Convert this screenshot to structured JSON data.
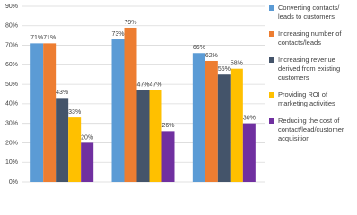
{
  "chart_data": {
    "type": "bar",
    "categories": [
      null,
      null,
      null
    ],
    "series": [
      {
        "name": "Converting contacts/ leads to customers",
        "color": "#5b9bd5",
        "values": [
          71,
          73,
          66
        ],
        "value_labels": [
          "71%",
          "73%",
          "66%"
        ]
      },
      {
        "name": "Increasing number of contacts/leads",
        "color": "#ed7d31",
        "values": [
          71,
          79,
          62
        ],
        "value_labels": [
          "71%",
          "79%",
          "62%"
        ]
      },
      {
        "name": "Increasing revenue derived from existing customers",
        "color": "#44546a",
        "values": [
          43,
          47,
          55
        ],
        "value_labels": [
          "43%",
          "47%",
          "55%"
        ]
      },
      {
        "name": "Providing ROI of marketing activities",
        "color": "#ffc000",
        "values": [
          33,
          47,
          58
        ],
        "value_labels": [
          "33%",
          "47%",
          "58%"
        ]
      },
      {
        "name": "Reducing the cost of contact/lead/customer acquisition",
        "color": "#7030a0",
        "values": [
          20,
          26,
          30
        ],
        "value_labels": [
          "20%",
          "26%",
          "30%"
        ]
      }
    ],
    "ylim": [
      0,
      90
    ],
    "yticks": [
      {
        "value": 0,
        "label": "0%"
      },
      {
        "value": 10,
        "label": "10%"
      },
      {
        "value": 20,
        "label": "20%"
      },
      {
        "value": 30,
        "label": "30%"
      },
      {
        "value": 40,
        "label": "40%"
      },
      {
        "value": 50,
        "label": "50%"
      },
      {
        "value": 60,
        "label": "60%"
      },
      {
        "value": 70,
        "label": "70%"
      },
      {
        "value": 80,
        "label": "80%"
      },
      {
        "value": 90,
        "label": "90%"
      }
    ],
    "grid": true
  }
}
